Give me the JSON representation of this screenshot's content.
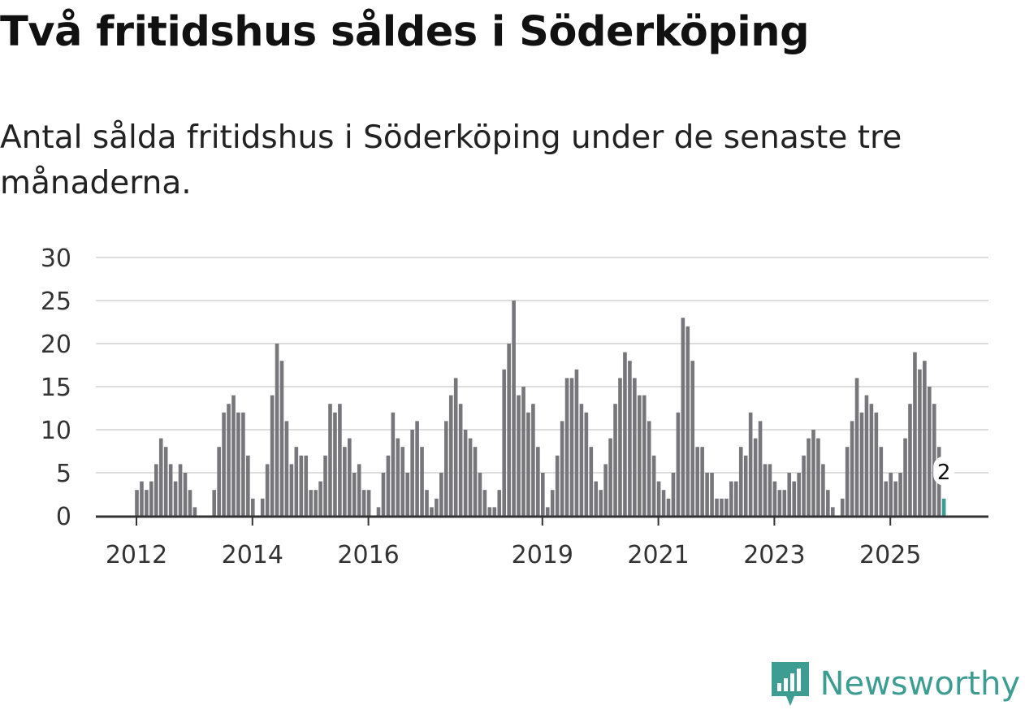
{
  "chart_data": {
    "type": "bar",
    "title": "Två fritidshus såldes i Söderköping",
    "subtitle": "Antal sålda fritidshus i Söderköping under de senaste tre månaderna.",
    "xlabel": "",
    "ylabel": "",
    "ylim": [
      0,
      30
    ],
    "yticks": [
      "0",
      "5",
      "10",
      "15",
      "20",
      "25",
      "30"
    ],
    "xticks": [
      {
        "label": "2012",
        "index": 0
      },
      {
        "label": "2014",
        "index": 24
      },
      {
        "label": "2016",
        "index": 48
      },
      {
        "label": "2019",
        "index": 84
      },
      {
        "label": "2021",
        "index": 108
      },
      {
        "label": "2023",
        "index": 132
      },
      {
        "label": "2025",
        "index": 156
      }
    ],
    "start": "2012-01",
    "period": "monthly",
    "series": [
      {
        "name": "Antal sålda fritidshus",
        "values": [
          3,
          4,
          3,
          4,
          6,
          9,
          8,
          6,
          4,
          6,
          5,
          3,
          1,
          0,
          0,
          0,
          3,
          8,
          12,
          13,
          14,
          12,
          12,
          7,
          2,
          0,
          2,
          6,
          14,
          20,
          18,
          11,
          6,
          8,
          7,
          7,
          3,
          3,
          4,
          7,
          13,
          12,
          13,
          8,
          9,
          5,
          6,
          3,
          3,
          0,
          1,
          5,
          7,
          12,
          9,
          8,
          5,
          10,
          11,
          8,
          3,
          1,
          2,
          5,
          11,
          14,
          16,
          13,
          10,
          9,
          8,
          5,
          3,
          1,
          1,
          3,
          17,
          20,
          25,
          14,
          15,
          12,
          13,
          8,
          5,
          1,
          3,
          7,
          11,
          16,
          16,
          17,
          13,
          12,
          8,
          4,
          3,
          6,
          9,
          13,
          16,
          19,
          18,
          16,
          14,
          14,
          11,
          7,
          4,
          3,
          2,
          5,
          12,
          23,
          22,
          18,
          8,
          8,
          5,
          5,
          2,
          2,
          2,
          4,
          4,
          8,
          7,
          12,
          9,
          11,
          6,
          6,
          4,
          3,
          3,
          5,
          4,
          5,
          7,
          9,
          10,
          9,
          6,
          3,
          1,
          0,
          2,
          8,
          11,
          16,
          12,
          14,
          13,
          12,
          8,
          4,
          5,
          4,
          5,
          9,
          13,
          19,
          17,
          18,
          15,
          13,
          8,
          2
        ]
      }
    ],
    "last_value_label": "2",
    "colors": {
      "bar": "#76767b",
      "highlight": "#3d9d92",
      "grid": "#dddddd",
      "axis": "#333333"
    }
  },
  "branding": {
    "name": "Newsworthy",
    "icon": "newsworthy-logo-icon"
  }
}
